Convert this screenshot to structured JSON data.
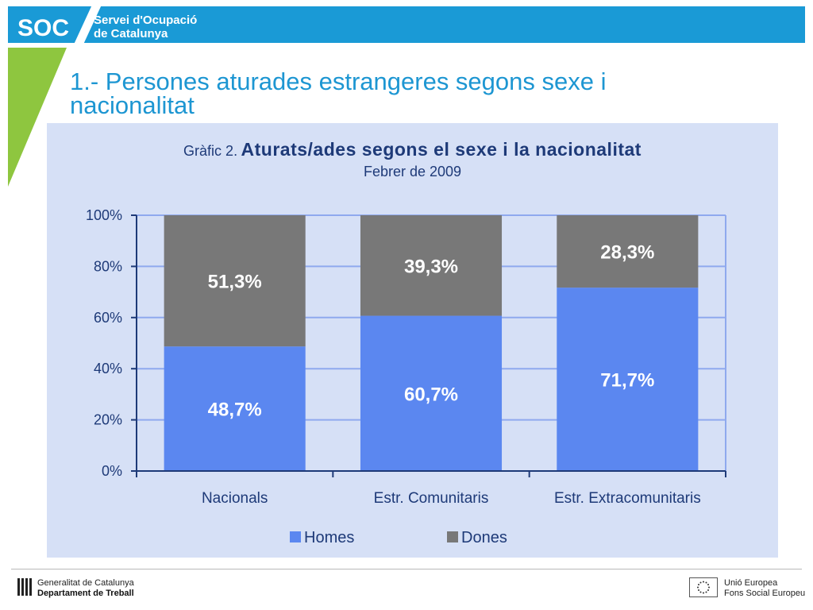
{
  "header": {
    "logo_text": "SOC",
    "org_line1": "Servei d'Ocupació",
    "org_line2": "de Catalunya",
    "bar_color": "#1a9ad6",
    "accent_color": "#8ec63f"
  },
  "slide": {
    "title_line1": "1.- Persones aturades estrangeres segons sexe i",
    "title_line2": "nacionalitat"
  },
  "chart_data": {
    "type": "bar",
    "stacked": true,
    "title_prefix": "Gràfic 2.",
    "title": "Aturats/ades segons el sexe i la nacionalitat",
    "subtitle": "Febrer de 2009",
    "categories": [
      "Nacionals",
      "Estr. Comunitaris",
      "Estr. Extracomunitaris"
    ],
    "series": [
      {
        "name": "Homes",
        "values": [
          48.7,
          60.7,
          71.7
        ],
        "labels": [
          "48,7%",
          "60,7%",
          "71,7%"
        ],
        "color": "#5b87f0"
      },
      {
        "name": "Dones",
        "values": [
          51.3,
          39.3,
          28.3
        ],
        "labels": [
          "51,3%",
          "39,3%",
          "28,3%"
        ],
        "color": "#787878"
      }
    ],
    "y_ticks": [
      {
        "value": 0,
        "label": "0%"
      },
      {
        "value": 20,
        "label": "20%"
      },
      {
        "value": 40,
        "label": "40%"
      },
      {
        "value": 60,
        "label": "60%"
      },
      {
        "value": 80,
        "label": "80%"
      },
      {
        "value": 100,
        "label": "100%"
      }
    ],
    "ylim": [
      0,
      100
    ],
    "grid": true,
    "grid_color": "#8fa9ee",
    "legend_position": "bottom"
  },
  "footer": {
    "left_line1": "Generalitat de Catalunya",
    "left_line2": "Departament de Treball",
    "right_line1": "Unió Europea",
    "right_line2": "Fons Social Europeu"
  }
}
